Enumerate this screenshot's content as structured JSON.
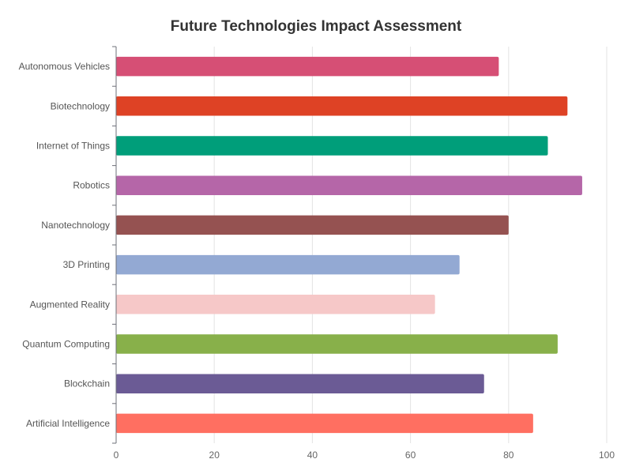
{
  "chart_data": {
    "type": "bar",
    "orientation": "horizontal",
    "title": "Future Technologies Impact Assessment",
    "xlabel": "",
    "ylabel": "",
    "categories": [
      "Autonomous Vehicles",
      "Biotechnology",
      "Internet of Things",
      "Robotics",
      "Nanotechnology",
      "3D Printing",
      "Augmented Reality",
      "Quantum Computing",
      "Blockchain",
      "Artificial Intelligence"
    ],
    "values": [
      78,
      92,
      88,
      95,
      80,
      70,
      65,
      90,
      75,
      85
    ],
    "colors": [
      "#d64f75",
      "#de4225",
      "#009e7a",
      "#b566a8",
      "#955251",
      "#93a9d3",
      "#f6c8c8",
      "#88b04a",
      "#6b5b95",
      "#ff6f61"
    ],
    "xlim": [
      0,
      100
    ],
    "xticks": [
      0,
      20,
      40,
      60,
      80,
      100
    ],
    "grid": true,
    "legend": "none"
  }
}
